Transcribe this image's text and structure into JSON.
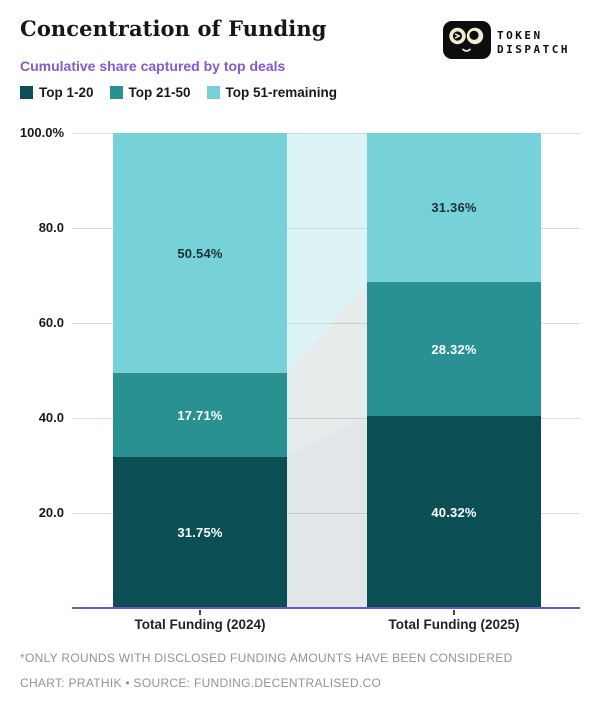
{
  "header": {
    "title": "Concentration of Funding",
    "subtitle": "Cumulative share captured by top deals"
  },
  "logo": {
    "line1": "TOKEN",
    "line2": "DISPATCH",
    "icon": "goggles-face-icon"
  },
  "legend": {
    "items": [
      {
        "label": "Top 1-20",
        "color": "#0b4f55"
      },
      {
        "label": "Top 21-50",
        "color": "#2a9193"
      },
      {
        "label": "Top 51-remaining",
        "color": "#76d1d9"
      }
    ]
  },
  "chart_data": {
    "type": "bar",
    "stacked": true,
    "categories": [
      "Total Funding (2024)",
      "Total Funding (2025)"
    ],
    "series": [
      {
        "name": "Top 1-20",
        "color": "#0b4f55",
        "values": [
          31.75,
          40.32
        ],
        "labels": [
          "31.75%",
          "40.32%"
        ],
        "label_color": "#ffffff"
      },
      {
        "name": "Top 21-50",
        "color": "#2a9193",
        "values": [
          17.71,
          28.32
        ],
        "labels": [
          "17.71%",
          "28.32%"
        ],
        "label_color": "#ffffff"
      },
      {
        "name": "Top 51-remaining",
        "color": "#76d1d9",
        "values": [
          50.54,
          31.36
        ],
        "labels": [
          "50.54%",
          "31.36%"
        ],
        "label_color": "#1d3038"
      }
    ],
    "yticks": [
      {
        "label": "100.0%",
        "value": 100
      },
      {
        "label": "80.0",
        "value": 80
      },
      {
        "label": "60.0",
        "value": 60
      },
      {
        "label": "40.0",
        "value": 40
      },
      {
        "label": "20.0",
        "value": 20
      }
    ],
    "ylim": [
      0,
      100
    ],
    "grid": true,
    "legend_position": "top",
    "axis_color": "#7352cd",
    "ribbon_colors": [
      "rgba(40,80,90,0.14)",
      "rgba(60,100,110,0.13)",
      "rgba(118,210,218,0.25)"
    ]
  },
  "footer": {
    "note": "*ONLY ROUNDS WITH DISCLOSED FUNDING AMOUNTS HAVE BEEN CONSIDERED",
    "credit": "CHART: PRATHIK • SOURCE: FUNDING.DECENTRALISED.CO"
  }
}
